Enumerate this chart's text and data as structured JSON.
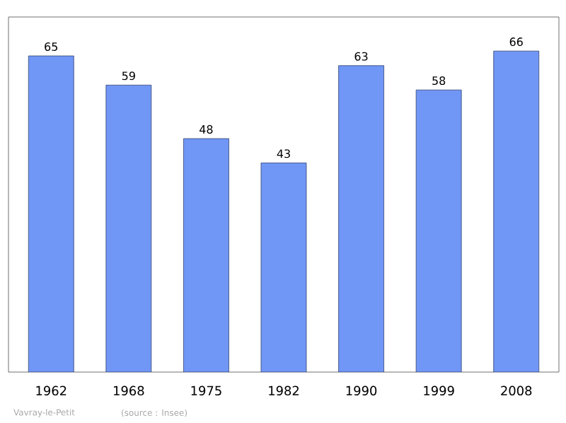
{
  "chart_data": {
    "type": "bar",
    "categories": [
      "1962",
      "1968",
      "1975",
      "1982",
      "1990",
      "1999",
      "2008"
    ],
    "values": [
      65,
      59,
      48,
      43,
      63,
      58,
      66
    ],
    "color": "#7096f6",
    "ylim": [
      0,
      73
    ],
    "data_labels": true,
    "tick_labels": "x",
    "annotations": [
      "Vavray-le-Petit",
      "(source : Insee)"
    ]
  }
}
